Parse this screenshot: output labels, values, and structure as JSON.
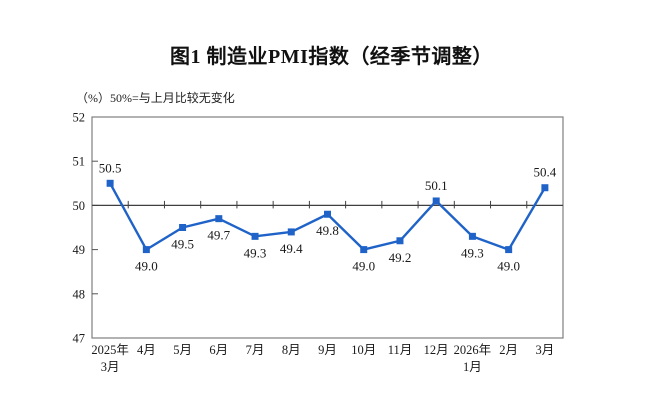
{
  "page": {
    "title": "图1  制造业PMI指数（经季节调整）",
    "subtitle": "（%）50%=与上月比较无变化"
  },
  "chart_data": {
    "type": "line",
    "title": "图1  制造业PMI指数（经季节调整）",
    "subtitle": "（%）50%=与上月比较无变化",
    "unit": "%",
    "categories": [
      [
        "2025年",
        "3月"
      ],
      [
        "4月"
      ],
      [
        "5月"
      ],
      [
        "6月"
      ],
      [
        "7月"
      ],
      [
        "8月"
      ],
      [
        "9月"
      ],
      [
        "10月"
      ],
      [
        "11月"
      ],
      [
        "12月"
      ],
      [
        "2026年",
        "1月"
      ],
      [
        "2月"
      ],
      [
        "3月"
      ]
    ],
    "series": [
      {
        "name": "制造业PMI",
        "values": [
          50.5,
          49.0,
          49.5,
          49.7,
          49.3,
          49.4,
          49.8,
          49.0,
          49.2,
          50.1,
          49.3,
          49.0,
          50.4
        ],
        "point_labels": [
          "50.5",
          "49.0",
          "49.5",
          "49.7",
          "49.3",
          "49.4",
          "49.8",
          "49.0",
          "49.2",
          "50.1",
          "49.3",
          "49.0",
          "50.4"
        ],
        "label_positions": [
          "above",
          "below",
          "below",
          "below",
          "below",
          "below",
          "below",
          "below",
          "below",
          "above",
          "below",
          "below",
          "above"
        ]
      }
    ],
    "ylim": [
      47,
      52
    ],
    "yticks": [
      "47",
      "48",
      "49",
      "50",
      "51",
      "52"
    ],
    "reference_line_y": 50,
    "grid": false,
    "legend": "none",
    "colors": {
      "line": "#1F63C8",
      "marker": "#1F63C8",
      "reference_line": "#3F3F3F",
      "frame": "#7F7F7F",
      "text": "#1A1A1A"
    }
  }
}
